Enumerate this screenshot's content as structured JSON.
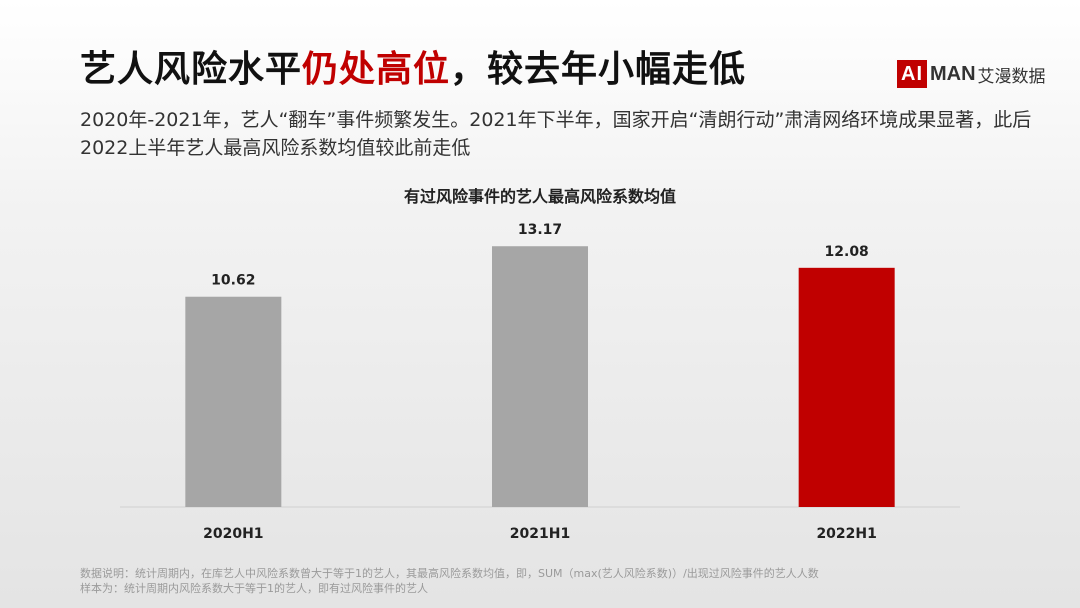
{
  "header": {
    "title_part1": "艺人风险水平",
    "title_highlight": "仍处高位",
    "title_part2": "，较去年小幅走低",
    "logo_ai": "AI",
    "logo_man": "MAN",
    "logo_cn": "艾漫数据",
    "subtitle": "2020年-2021年，艺人“翻车”事件频繁发生。2021年下半年，国家开启“清朗行动”肃清网络环境成果显著，此后2022上半年艺人最高风险系数均值较此前走低"
  },
  "chart_data": {
    "type": "bar",
    "title": "有过风险事件的艺人最高风险系数均值",
    "categories": [
      "2020H1",
      "2021H1",
      "2022H1"
    ],
    "values": [
      10.62,
      13.17,
      12.08
    ],
    "value_labels": [
      "10.62",
      "13.17",
      "12.08"
    ],
    "bar_colors": [
      "#a6a6a6",
      "#a6a6a6",
      "#c00000"
    ],
    "ylim": [
      0,
      15
    ],
    "grid": false,
    "legend": "none"
  },
  "footnote": {
    "line1": "数据说明：统计周期内，在库艺人中风险系数曾大于等于1的艺人，其最高风险系数均值，即，SUM（max(艺人风险系数)）/出现过风险事件的艺人人数",
    "line2": "样本为：统计周期内风险系数大于等于1的艺人，即有过风险事件的艺人"
  },
  "colors": {
    "accent": "#c00000",
    "bar_default": "#a6a6a6",
    "axis": "#d0d0d0"
  }
}
